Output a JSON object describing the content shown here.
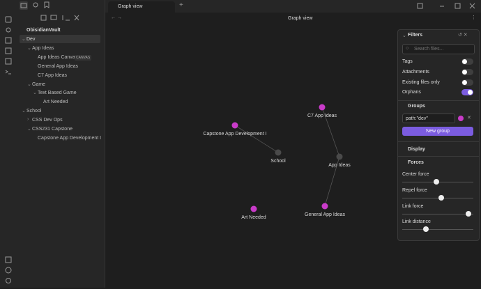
{
  "tab": {
    "title": "Graph view"
  },
  "header": {
    "title": "Graph view"
  },
  "sidebar": {
    "vault": "ObisidianVault",
    "tree": [
      {
        "label": "Dev"
      },
      {
        "label": "App Ideas"
      },
      {
        "label": "App Ideas Canvas",
        "badge": "CANVAS"
      },
      {
        "label": "General App Ideas"
      },
      {
        "label": "C7 App Ideas"
      },
      {
        "label": "Game"
      },
      {
        "label": "Text Based Game"
      },
      {
        "label": "Art Needed"
      },
      {
        "label": "School"
      },
      {
        "label": "CSS Dev Ops"
      },
      {
        "label": "CSS231 Capstone"
      },
      {
        "label": "Capstone App Development I"
      }
    ]
  },
  "graph": {
    "nodes": [
      {
        "label": "C7 App Ideas",
        "color": "#c93bc9"
      },
      {
        "label": "Capstone App Development I",
        "color": "#c93bc9"
      },
      {
        "label": "School",
        "color": "#4a4a4a"
      },
      {
        "label": "App Ideas",
        "color": "#4a4a4a"
      },
      {
        "label": "Art Needed",
        "color": "#c93bc9"
      },
      {
        "label": "General App Ideas",
        "color": "#c93bc9"
      }
    ]
  },
  "filters": {
    "title": "Filters",
    "search_placeholder": "Search files...",
    "toggles": [
      {
        "label": "Tags",
        "on": false
      },
      {
        "label": "Attachments",
        "on": false
      },
      {
        "label": "Existing files only",
        "on": false
      },
      {
        "label": "Orphans",
        "on": true
      }
    ],
    "groups": {
      "title": "Groups",
      "query": "path:\"dev\"",
      "color": "#c93bc9",
      "button": "New group"
    },
    "display": "Display",
    "forces": {
      "title": "Forces",
      "sliders": [
        "Center force",
        "Repel force",
        "Link force",
        "Link distance"
      ]
    }
  }
}
